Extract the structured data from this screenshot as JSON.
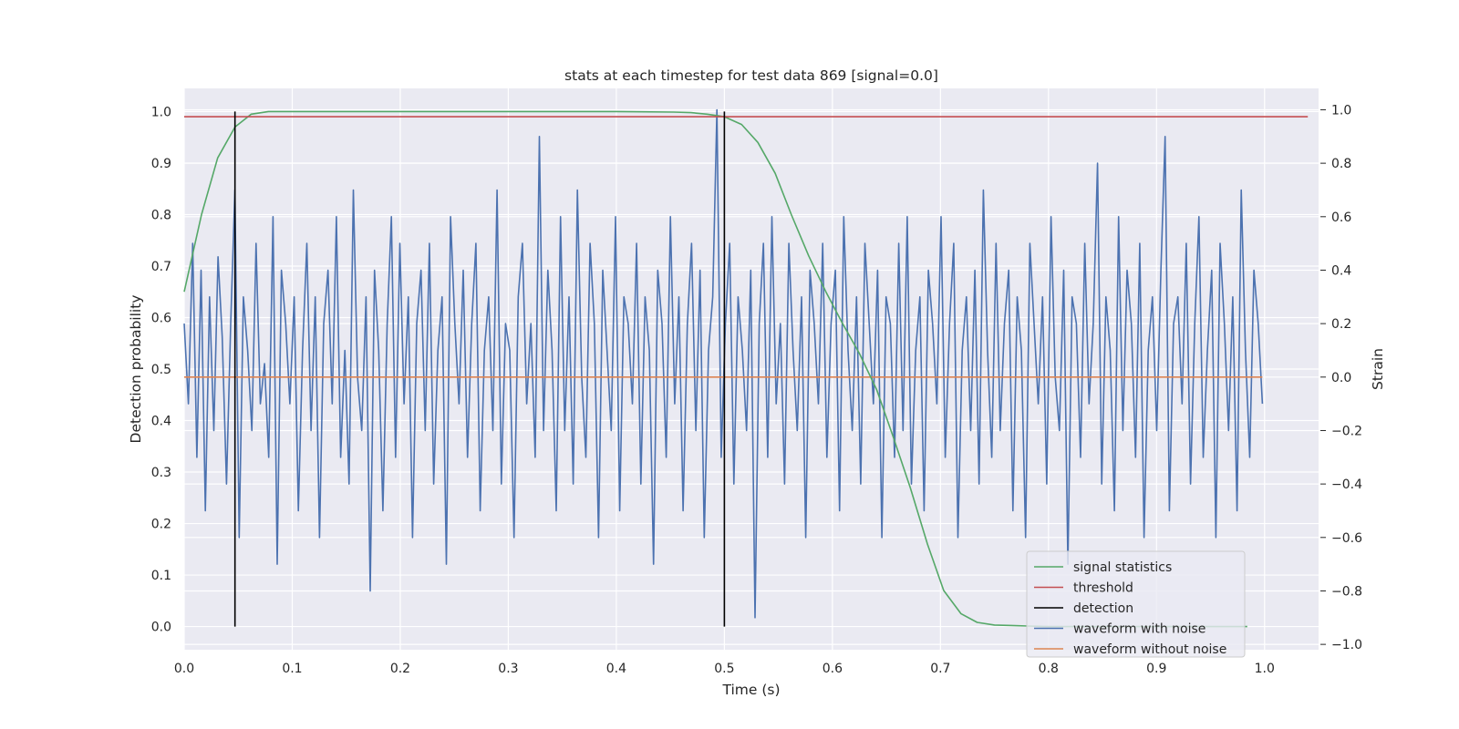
{
  "chart_data": {
    "type": "line",
    "title": "stats at each timestep for test data 869 [signal=0.0]",
    "xlabel": "Time (s)",
    "ylabel_left": "Detection probability",
    "ylabel_right": "Strain",
    "xlim": [
      0.0,
      1.05
    ],
    "ylim_left": [
      -0.045,
      1.045
    ],
    "ylim_right": [
      -1.02,
      1.08
    ],
    "x_ticks": [
      "0.0",
      "0.1",
      "0.2",
      "0.3",
      "0.4",
      "0.5",
      "0.6",
      "0.7",
      "0.8",
      "0.9",
      "1.0"
    ],
    "y_ticks_left": [
      "0.0",
      "0.1",
      "0.2",
      "0.3",
      "0.4",
      "0.5",
      "0.6",
      "0.7",
      "0.8",
      "0.9",
      "1.0"
    ],
    "y_ticks_right": [
      "−1.0",
      "−0.8",
      "−0.6",
      "−0.4",
      "−0.2",
      "0.0",
      "0.2",
      "0.4",
      "0.6",
      "0.8",
      "1.0"
    ],
    "grid": true,
    "legend_position": "lower-right",
    "series": [
      {
        "name": "signal statistics",
        "axis": "left",
        "color": "#55a868",
        "x": [
          0.0,
          0.016,
          0.031,
          0.047,
          0.062,
          0.078,
          0.094,
          0.109,
          0.2,
          0.3,
          0.4,
          0.453,
          0.469,
          0.484,
          0.5,
          0.516,
          0.531,
          0.547,
          0.562,
          0.578,
          0.594,
          0.609,
          0.625,
          0.641,
          0.656,
          0.672,
          0.688,
          0.703,
          0.719,
          0.734,
          0.75,
          0.766,
          0.781,
          0.8,
          0.9,
          0.984
        ],
        "y": [
          0.65,
          0.8,
          0.91,
          0.97,
          0.995,
          1.0,
          1.0,
          1.0,
          1.0,
          1.0,
          1.0,
          0.999,
          0.998,
          0.995,
          0.99,
          0.975,
          0.94,
          0.88,
          0.8,
          0.72,
          0.65,
          0.59,
          0.53,
          0.46,
          0.37,
          0.27,
          0.16,
          0.07,
          0.025,
          0.008,
          0.003,
          0.002,
          0.001,
          0.0,
          0.0,
          0.0
        ]
      },
      {
        "name": "threshold",
        "axis": "left",
        "color": "#c44e52",
        "x": [
          0.0,
          1.04
        ],
        "y": [
          0.99,
          0.99
        ]
      },
      {
        "name": "detection",
        "axis": "left",
        "color": "#000000",
        "segments": [
          {
            "x": 0.047,
            "y": [
              0.0,
              1.0
            ]
          },
          {
            "x": 0.5,
            "y": [
              0.0,
              1.0
            ]
          }
        ]
      },
      {
        "name": "waveform with noise",
        "axis": "right",
        "color": "#4c72b0",
        "x_range": [
          0.0,
          0.998
        ],
        "values": [
          0.2,
          -0.1,
          0.5,
          -0.3,
          0.4,
          -0.5,
          0.3,
          -0.2,
          0.45,
          0.15,
          -0.4,
          0.2,
          0.7,
          -0.6,
          0.3,
          0.1,
          -0.2,
          0.5,
          -0.1,
          0.05,
          -0.3,
          0.6,
          -0.7,
          0.4,
          0.2,
          -0.1,
          0.3,
          -0.5,
          0.1,
          0.5,
          -0.2,
          0.3,
          -0.6,
          0.2,
          0.4,
          -0.1,
          0.6,
          -0.3,
          0.1,
          -0.4,
          0.7,
          0.0,
          -0.2,
          0.3,
          -0.8,
          0.4,
          0.1,
          -0.5,
          0.2,
          0.6,
          -0.3,
          0.5,
          -0.1,
          0.3,
          -0.6,
          0.2,
          0.4,
          -0.2,
          0.5,
          -0.4,
          0.1,
          0.3,
          -0.7,
          0.6,
          0.2,
          -0.1,
          0.4,
          -0.3,
          0.2,
          0.5,
          -0.5,
          0.1,
          0.3,
          -0.2,
          0.7,
          -0.4,
          0.2,
          0.1,
          -0.6,
          0.3,
          0.5,
          -0.1,
          0.2,
          -0.3,
          0.9,
          -0.2,
          0.4,
          0.1,
          -0.5,
          0.6,
          -0.2,
          0.3,
          -0.4,
          0.7,
          0.0,
          -0.3,
          0.5,
          0.2,
          -0.6,
          0.4,
          0.1,
          -0.2,
          0.6,
          -0.5,
          0.3,
          0.2,
          -0.1,
          0.5,
          -0.4,
          0.3,
          0.1,
          -0.7,
          0.4,
          0.2,
          -0.3,
          0.6,
          -0.1,
          0.3,
          -0.5,
          0.2,
          0.5,
          -0.2,
          0.4,
          -0.6,
          0.1,
          0.3,
          1.0,
          -0.3,
          0.2,
          0.5,
          -0.4,
          0.3,
          0.1,
          -0.2,
          0.4,
          -0.9,
          0.2,
          0.5,
          -0.3,
          0.6,
          -0.1,
          0.2,
          -0.4,
          0.5,
          0.1,
          -0.2,
          0.3,
          -0.6,
          0.4,
          0.2,
          -0.1,
          0.5,
          -0.3,
          0.2,
          0.4,
          -0.5,
          0.6,
          0.1,
          -0.2,
          0.3,
          -0.4,
          0.5,
          0.2,
          -0.1,
          0.4,
          -0.6,
          0.3,
          0.2,
          -0.3,
          0.5,
          -0.2,
          0.6,
          -0.4,
          0.1,
          0.3,
          -0.5,
          0.4,
          0.2,
          -0.1,
          0.6,
          -0.3,
          0.2,
          0.5,
          -0.6,
          0.1,
          0.3,
          -0.2,
          0.4,
          -0.4,
          0.7,
          0.1,
          -0.3,
          0.5,
          -0.2,
          0.2,
          0.4,
          -0.5,
          0.3,
          0.1,
          -0.6,
          0.5,
          0.2,
          -0.1,
          0.3,
          -0.4,
          0.6,
          0.0,
          -0.2,
          0.4,
          -0.7,
          0.3,
          0.2,
          -0.3,
          0.5,
          -0.1,
          0.2,
          0.8,
          -0.4,
          0.3,
          0.1,
          -0.5,
          0.6,
          -0.2,
          0.4,
          0.2,
          -0.3,
          0.5,
          -0.6,
          0.1,
          0.3,
          -0.2,
          0.4,
          0.9,
          -0.5,
          0.2,
          0.3,
          -0.1,
          0.5,
          -0.4,
          0.2,
          0.6,
          -0.3,
          0.1,
          0.4,
          -0.6,
          0.5,
          0.2,
          -0.2,
          0.3,
          -0.5,
          0.7,
          0.1,
          -0.3,
          0.4,
          0.2,
          -0.1
        ]
      },
      {
        "name": "waveform without noise",
        "axis": "right",
        "color": "#dd8452",
        "x": [
          0.0,
          0.998
        ],
        "y": [
          0.0,
          0.0
        ]
      }
    ]
  }
}
